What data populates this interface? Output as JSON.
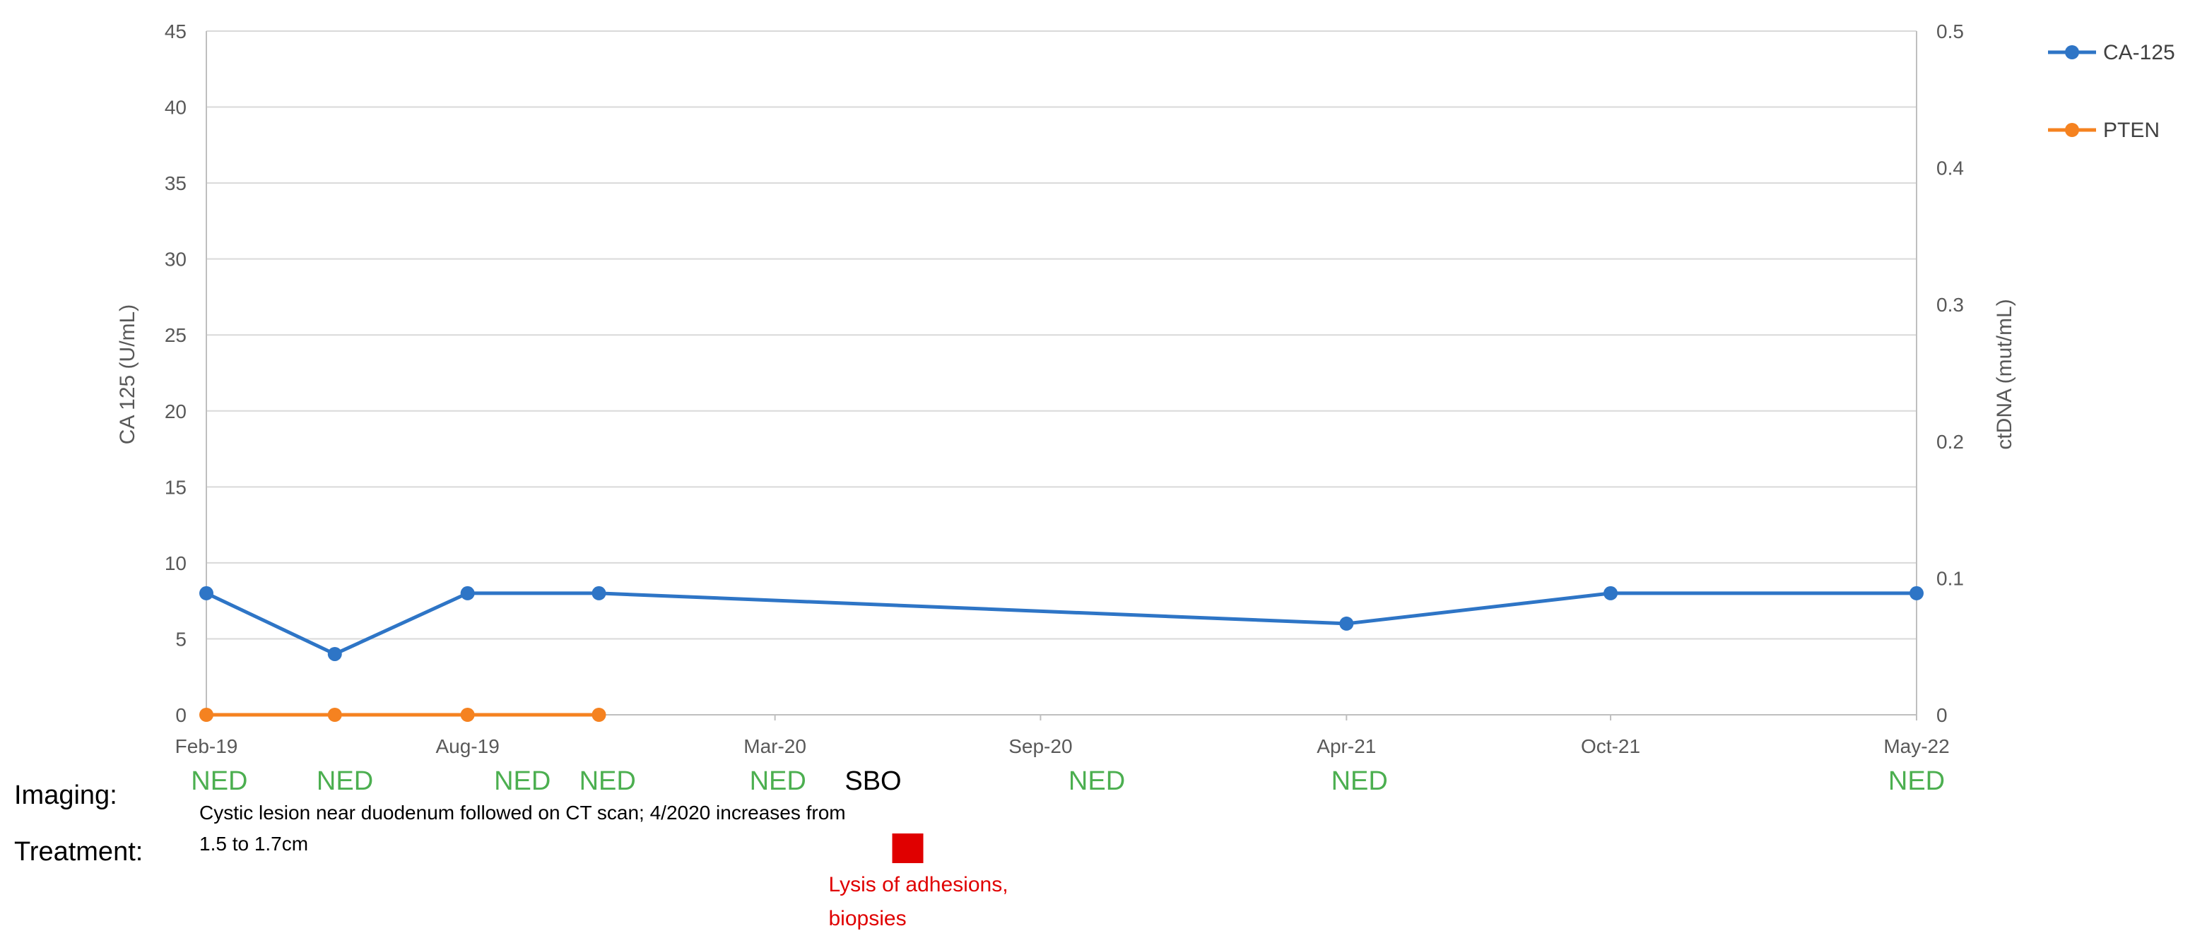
{
  "chart_data": {
    "type": "line",
    "xlabel": "",
    "ylabel": "CA 125 (U/mL)",
    "y2label": "ctDNA  (mut/mL)",
    "ylim": [
      0,
      45
    ],
    "y2lim": [
      0,
      0.5
    ],
    "x_tick_labels": [
      "Feb-19",
      "Aug-19",
      "Mar-20",
      "Sep-20",
      "Apr-21",
      "Oct-21",
      "May-22"
    ],
    "x_tick_dates": [
      "2019-02-01",
      "2019-08-01",
      "2020-03-01",
      "2020-09-01",
      "2021-04-01",
      "2021-10-01",
      "2022-05-01"
    ],
    "y_ticks": [
      0,
      5,
      10,
      15,
      20,
      25,
      30,
      35,
      40,
      45
    ],
    "y2_ticks": [
      0,
      0.1,
      0.2,
      0.3,
      0.4,
      0.5
    ],
    "grid": true,
    "legend_placement": "top-right",
    "series": [
      {
        "name": "CA-125",
        "axis": "left",
        "color": "#2e75c6",
        "x": [
          "2019-02-01",
          "2019-05-01",
          "2019-08-01",
          "2019-10-31",
          "2021-04-01",
          "2021-10-01",
          "2022-05-01"
        ],
        "values": [
          8,
          4,
          8,
          8,
          6,
          8,
          8
        ]
      },
      {
        "name": "PTEN",
        "axis": "right",
        "color": "#f58220",
        "x": [
          "2019-02-01",
          "2019-05-01",
          "2019-08-01",
          "2019-10-31"
        ],
        "values": [
          0,
          0,
          0,
          0
        ]
      }
    ]
  },
  "annotations": {
    "imaging_label": "Imaging:",
    "treatment_label": "Treatment:",
    "imaging_events": [
      {
        "date": "2019-02-10",
        "text": "NED",
        "color": "#4caf50"
      },
      {
        "date": "2019-05-08",
        "text": "NED",
        "color": "#4caf50"
      },
      {
        "date": "2019-09-08",
        "text": "NED",
        "color": "#4caf50"
      },
      {
        "date": "2019-11-06",
        "text": "NED",
        "color": "#4caf50"
      },
      {
        "date": "2020-03-03",
        "text": "NED",
        "color": "#4caf50"
      },
      {
        "date": "2020-05-08",
        "text": "SBO",
        "color": "#000000"
      },
      {
        "date": "2020-10-10",
        "text": "NED",
        "color": "#4caf50"
      },
      {
        "date": "2021-04-10",
        "text": "NED",
        "color": "#4caf50"
      },
      {
        "date": "2022-05-01",
        "text": "NED",
        "color": "#4caf50"
      }
    ],
    "imaging_note_line1": "Cystic lesion near duodenum followed on CT scan; 4/2020 increases from",
    "imaging_note_line2": "1.5 to 1.7cm",
    "treatment_events": [
      {
        "date": "2020-06-01",
        "text_line1": "Lysis of adhesions,",
        "text_line2": "biopsies",
        "color": "#e00000"
      }
    ]
  },
  "colors": {
    "grid": "#d9d9d9",
    "axis": "#bfbfbf",
    "ned": "#4caf50",
    "treatment": "#e00000"
  }
}
